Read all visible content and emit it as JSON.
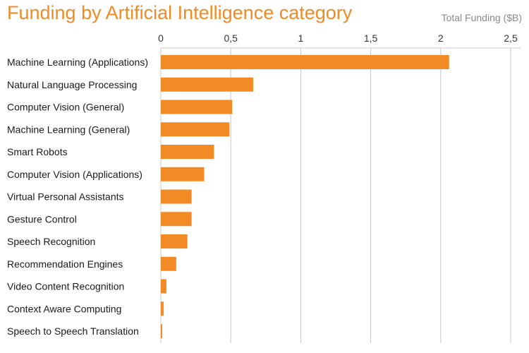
{
  "chart_data": {
    "type": "bar",
    "orientation": "horizontal",
    "title": "Funding by Artificial Intelligence category",
    "unit_label": "Total Funding ($B)",
    "xlabel": "Total Funding ($B)",
    "ylabel": "",
    "xlim": [
      0,
      2.5
    ],
    "x_ticks": [
      0,
      0.5,
      1,
      1.5,
      2,
      2.5
    ],
    "x_tick_labels": [
      "0",
      "0,5",
      "1",
      "1,5",
      "2",
      "2,5"
    ],
    "grid": true,
    "legend": "none",
    "bar_color": "#f28a25",
    "categories": [
      "Machine Learning (Applications)",
      "Natural Language Processing",
      "Computer Vision (General)",
      "Machine Learning (General)",
      "Smart Robots",
      "Computer Vision (Applications)",
      "Virtual Personal Assistants",
      "Gesture Control",
      "Speech Recognition",
      "Recommendation Engines",
      "Video Content Recognition",
      "Context Aware Computing",
      "Speech to Speech Translation"
    ],
    "values": [
      2.06,
      0.66,
      0.51,
      0.49,
      0.38,
      0.31,
      0.22,
      0.22,
      0.19,
      0.11,
      0.04,
      0.02,
      0.01
    ]
  }
}
